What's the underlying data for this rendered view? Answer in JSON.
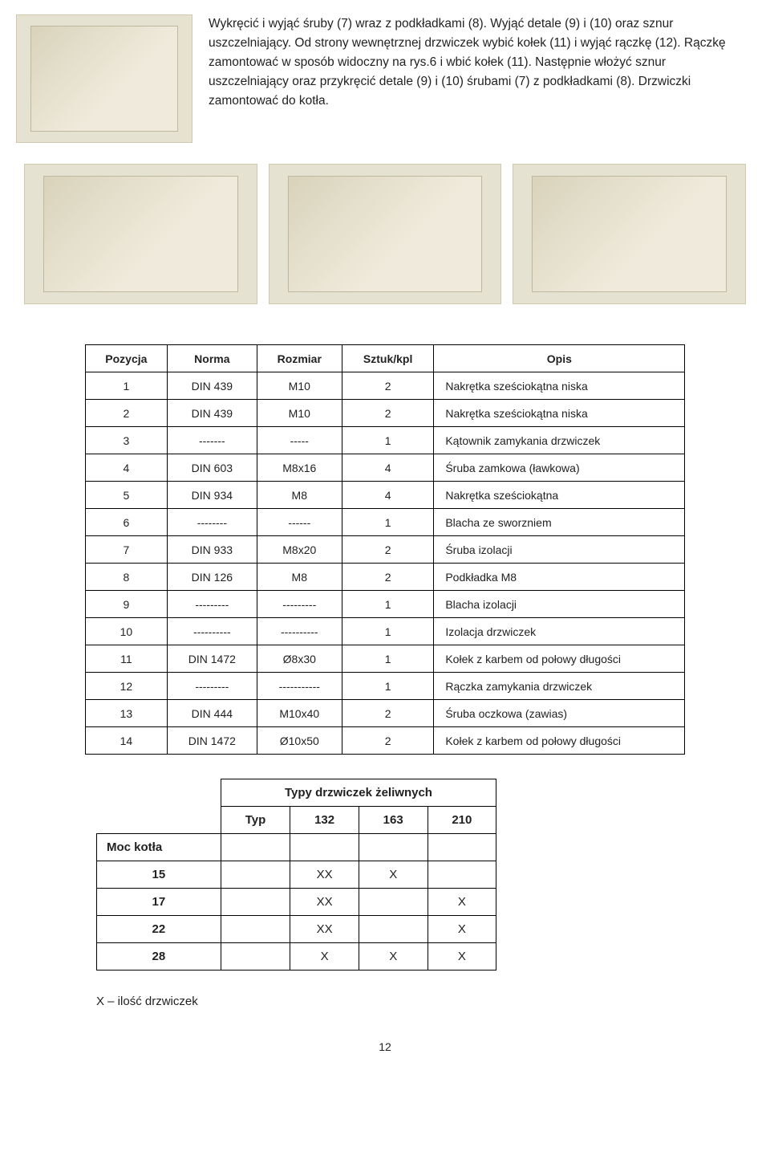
{
  "intro": {
    "p1": "Wykręcić i wyjąć śruby (7) wraz z podkładkami (8). Wyjąć detale (9) i (10) oraz sznur uszczelniający. Od strony wewnętrznej drzwiczek wybić kołek (11) i wyjąć rączkę (12). Rączkę zamontować w sposób widoczny na rys.6 i wbić kołek (11). Następnie włożyć sznur uszczelniający oraz przykręcić detale (9) i (10) śrubami (7) z podkładkami (8). Drzwiczki zamontować do kotła."
  },
  "parts_table": {
    "headers": [
      "Pozycja",
      "Norma",
      "Rozmiar",
      "Sztuk/kpl",
      "Opis"
    ],
    "col_align": [
      "center",
      "center",
      "center",
      "center",
      "left"
    ],
    "rows": [
      [
        "1",
        "DIN 439",
        "M10",
        "2",
        "Nakrętka sześciokątna niska"
      ],
      [
        "2",
        "DIN 439",
        "M10",
        "2",
        "Nakrętka sześciokątna niska"
      ],
      [
        "3",
        "-------",
        "-----",
        "1",
        "Kątownik zamykania drzwiczek"
      ],
      [
        "4",
        "DIN 603",
        "M8x16",
        "4",
        "Śruba zamkowa (ławkowa)"
      ],
      [
        "5",
        "DIN 934",
        "M8",
        "4",
        "Nakrętka sześciokątna"
      ],
      [
        "6",
        "--------",
        "------",
        "1",
        "Blacha ze sworzniem"
      ],
      [
        "7",
        "DIN 933",
        "M8x20",
        "2",
        "Śruba izolacji"
      ],
      [
        "8",
        "DIN 126",
        "M8",
        "2",
        "Podkładka M8"
      ],
      [
        "9",
        "---------",
        "---------",
        "1",
        "Blacha izolacji"
      ],
      [
        "10",
        "----------",
        "----------",
        "1",
        "Izolacja drzwiczek"
      ],
      [
        "11",
        "DIN 1472",
        "Ø8x30",
        "1",
        "Kołek z karbem od połowy długości"
      ],
      [
        "12",
        "---------",
        "-----------",
        "1",
        "Rączka zamykania drzwiczek"
      ],
      [
        "13",
        "DIN 444",
        "M10x40",
        "2",
        "Śruba oczkowa (zawias)"
      ],
      [
        "14",
        "DIN 1472",
        "Ø10x50",
        "2",
        "Kołek z karbem od połowy długości"
      ]
    ]
  },
  "types_table": {
    "title": "Typy drzwiczek żeliwnych",
    "typ_label": "Typ",
    "typ_cols": [
      "132",
      "163",
      "210"
    ],
    "moc_label": "Moc kotła",
    "rows": [
      {
        "label": "15",
        "v": [
          "XX",
          "X",
          ""
        ]
      },
      {
        "label": "17",
        "v": [
          "XX",
          "",
          "X"
        ]
      },
      {
        "label": "22",
        "v": [
          "XX",
          "",
          "X"
        ]
      },
      {
        "label": "28",
        "v": [
          "X",
          "X",
          "X"
        ]
      }
    ]
  },
  "footnote": "X – ilość drzwiczek",
  "page_number": "12",
  "colors": {
    "diagram_bg": "#e6e2d2",
    "border": "#000000",
    "text": "#222222"
  }
}
